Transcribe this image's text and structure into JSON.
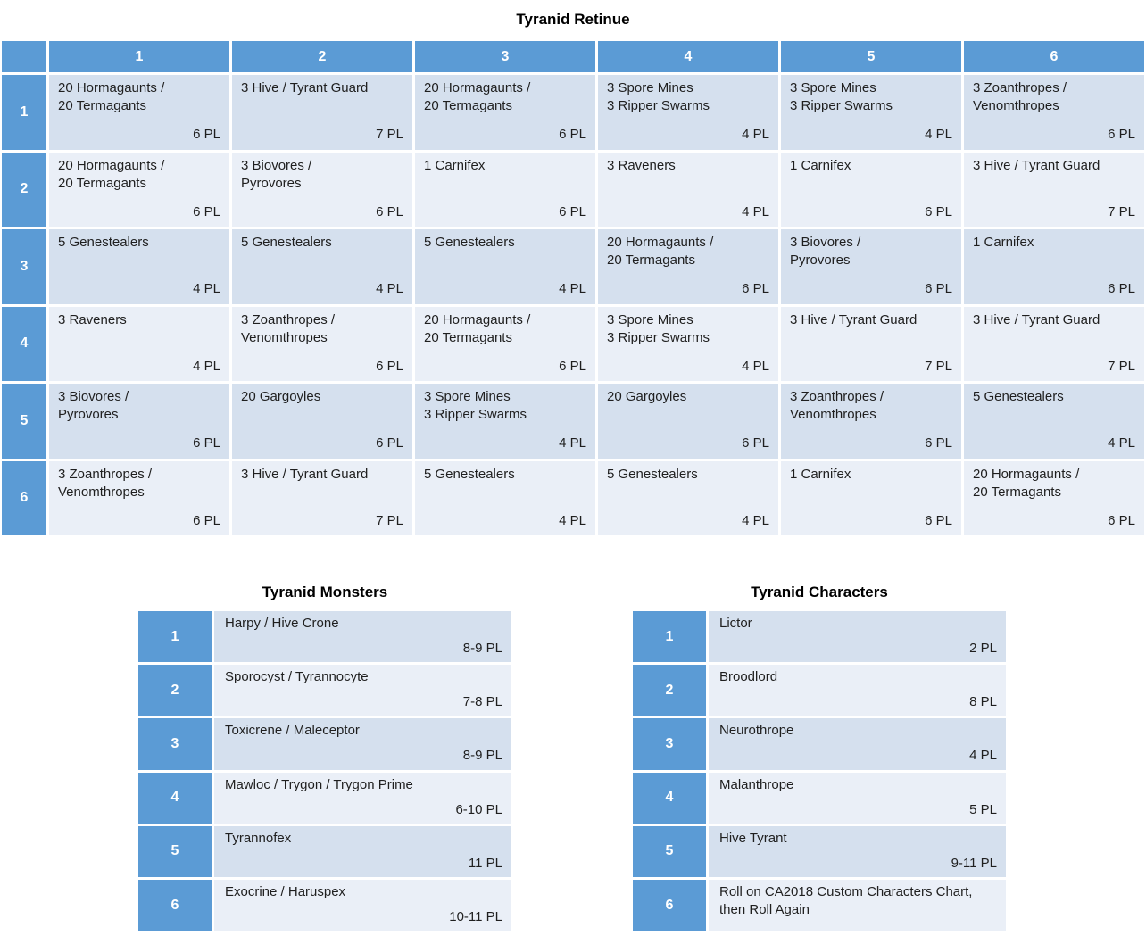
{
  "colors": {
    "blue": "#5B9BD5",
    "band_dark": "#D5E0EE",
    "band_light": "#EAEFF7",
    "header_text": "#FFFFFF",
    "text": "#1F1F1F",
    "bg": "#FFFFFF"
  },
  "retinue": {
    "title": "Tyranid Retinue",
    "col_headers": [
      "1",
      "2",
      "3",
      "4",
      "5",
      "6"
    ],
    "row_headers": [
      "1",
      "2",
      "3",
      "4",
      "5",
      "6"
    ],
    "rows": [
      {
        "cells": [
          {
            "lines": [
              "20 Hormagaunts /",
              "20 Termagants"
            ],
            "pl": "6 PL"
          },
          {
            "lines": [
              "3 Hive / Tyrant Guard"
            ],
            "pl": "7 PL"
          },
          {
            "lines": [
              "20 Hormagaunts /",
              "20 Termagants"
            ],
            "pl": "6 PL"
          },
          {
            "lines": [
              "3 Spore Mines",
              "3 Ripper Swarms"
            ],
            "pl": "4 PL"
          },
          {
            "lines": [
              "3 Spore Mines",
              "3 Ripper Swarms"
            ],
            "pl": "4 PL"
          },
          {
            "lines": [
              "3 Zoanthropes /",
              "Venomthropes"
            ],
            "pl": "6 PL"
          }
        ]
      },
      {
        "cells": [
          {
            "lines": [
              "20 Hormagaunts /",
              "20 Termagants"
            ],
            "pl": "6 PL"
          },
          {
            "lines": [
              "3 Biovores /",
              "Pyrovores"
            ],
            "pl": "6 PL"
          },
          {
            "lines": [
              "1 Carnifex"
            ],
            "pl": "6 PL"
          },
          {
            "lines": [
              "3 Raveners"
            ],
            "pl": "4 PL"
          },
          {
            "lines": [
              "1 Carnifex"
            ],
            "pl": "6 PL"
          },
          {
            "lines": [
              "3 Hive / Tyrant Guard"
            ],
            "pl": "7 PL"
          }
        ]
      },
      {
        "cells": [
          {
            "lines": [
              "5 Genestealers"
            ],
            "pl": "4 PL"
          },
          {
            "lines": [
              "5 Genestealers"
            ],
            "pl": "4 PL"
          },
          {
            "lines": [
              "5 Genestealers"
            ],
            "pl": "4 PL"
          },
          {
            "lines": [
              "20 Hormagaunts /",
              "20 Termagants"
            ],
            "pl": "6 PL"
          },
          {
            "lines": [
              "3 Biovores /",
              "Pyrovores"
            ],
            "pl": "6 PL"
          },
          {
            "lines": [
              "1 Carnifex"
            ],
            "pl": "6 PL"
          }
        ]
      },
      {
        "cells": [
          {
            "lines": [
              "3 Raveners"
            ],
            "pl": "4 PL"
          },
          {
            "lines": [
              "3 Zoanthropes /",
              "Venomthropes"
            ],
            "pl": "6 PL"
          },
          {
            "lines": [
              "20 Hormagaunts /",
              "20 Termagants"
            ],
            "pl": "6 PL"
          },
          {
            "lines": [
              "3 Spore Mines",
              "3 Ripper Swarms"
            ],
            "pl": "4 PL"
          },
          {
            "lines": [
              "3 Hive / Tyrant Guard"
            ],
            "pl": "7 PL"
          },
          {
            "lines": [
              "3 Hive / Tyrant Guard"
            ],
            "pl": "7 PL"
          }
        ]
      },
      {
        "cells": [
          {
            "lines": [
              "3 Biovores /",
              "Pyrovores"
            ],
            "pl": "6 PL"
          },
          {
            "lines": [
              "20 Gargoyles"
            ],
            "pl": "6 PL"
          },
          {
            "lines": [
              "3 Spore Mines",
              "3 Ripper Swarms"
            ],
            "pl": "4 PL"
          },
          {
            "lines": [
              "20 Gargoyles"
            ],
            "pl": "6 PL"
          },
          {
            "lines": [
              "3 Zoanthropes /",
              "Venomthropes"
            ],
            "pl": "6 PL"
          },
          {
            "lines": [
              "5 Genestealers"
            ],
            "pl": "4 PL"
          }
        ]
      },
      {
        "cells": [
          {
            "lines": [
              "3 Zoanthropes /",
              "Venomthropes"
            ],
            "pl": "6 PL"
          },
          {
            "lines": [
              "3 Hive / Tyrant Guard"
            ],
            "pl": "7 PL"
          },
          {
            "lines": [
              "5 Genestealers"
            ],
            "pl": "4 PL"
          },
          {
            "lines": [
              "5 Genestealers"
            ],
            "pl": "4 PL"
          },
          {
            "lines": [
              "1 Carnifex"
            ],
            "pl": "6 PL"
          },
          {
            "lines": [
              "20 Hormagaunts /",
              "20 Termagants"
            ],
            "pl": "6 PL"
          }
        ]
      }
    ]
  },
  "monsters": {
    "title": "Tyranid Monsters",
    "rows": [
      {
        "num": "1",
        "name": "Harpy / Hive Crone",
        "pl": "8-9 PL"
      },
      {
        "num": "2",
        "name": "Sporocyst / Tyrannocyte",
        "pl": "7-8 PL"
      },
      {
        "num": "3",
        "name": "Toxicrene / Maleceptor",
        "pl": "8-9 PL"
      },
      {
        "num": "4",
        "name": "Mawloc / Trygon / Trygon Prime",
        "pl": "6-10 PL"
      },
      {
        "num": "5",
        "name": "Tyrannofex",
        "pl": "11 PL"
      },
      {
        "num": "6",
        "name": "Exocrine / Haruspex",
        "pl": "10-11 PL"
      }
    ]
  },
  "characters": {
    "title": "Tyranid Characters",
    "rows": [
      {
        "num": "1",
        "name": "Lictor",
        "pl": "2 PL"
      },
      {
        "num": "2",
        "name": "Broodlord",
        "pl": "8 PL"
      },
      {
        "num": "3",
        "name": "Neurothrope",
        "pl": "4 PL"
      },
      {
        "num": "4",
        "name": "Malanthrope",
        "pl": "5 PL"
      },
      {
        "num": "5",
        "name": "Hive Tyrant",
        "pl": "9-11 PL"
      },
      {
        "num": "6",
        "name": "Roll on CA2018 Custom Characters Chart, then Roll Again",
        "pl": ""
      }
    ]
  }
}
